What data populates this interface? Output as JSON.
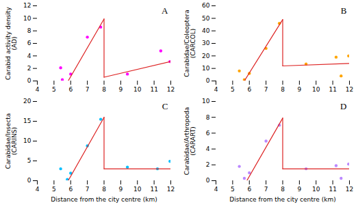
{
  "chart_data": [
    {
      "type": "scatter",
      "annotations": [
        "A"
      ],
      "ylabel": "Carabid activity density\n(AD)",
      "xlim": [
        4,
        12
      ],
      "xticks": [
        4,
        5,
        6,
        7,
        8,
        9,
        10,
        11,
        12
      ],
      "ylim": [
        0,
        12
      ],
      "yticks": [
        0,
        2,
        4,
        6,
        8,
        10,
        12
      ],
      "series": [
        {
          "type": "scatter",
          "color": "#FF00FF",
          "x": [
            5.4,
            5.5,
            6.0,
            7.0,
            7.8,
            9.4,
            11.4,
            11.95
          ],
          "values": [
            2.1,
            0.2,
            1.1,
            7.0,
            8.6,
            1.1,
            4.8,
            3.1
          ]
        },
        {
          "type": "line",
          "color": "#DD2222",
          "x": [
            5.85,
            8.0
          ],
          "values": [
            0.0,
            9.9
          ]
        },
        {
          "type": "line",
          "color": "#DD2222",
          "x": [
            8.0,
            12.0
          ],
          "values": [
            0.6,
            3.1
          ]
        },
        {
          "type": "line",
          "color": "#DD2222",
          "x": [
            8.0,
            8.0
          ],
          "values": [
            9.9,
            0.6
          ]
        }
      ]
    },
    {
      "type": "scatter",
      "annotations": [
        "B"
      ],
      "ylabel": "Carabidae/Coleoptera\n(CARCOL)",
      "xlim": [
        4,
        12
      ],
      "xticks": [
        4,
        5,
        6,
        7,
        8,
        9,
        10,
        11,
        12
      ],
      "ylim": [
        0,
        60
      ],
      "yticks": [
        0,
        10,
        20,
        30,
        40,
        50,
        60
      ],
      "series": [
        {
          "type": "scatter",
          "color": "#FFA500",
          "x": [
            5.4,
            5.7,
            6.0,
            7.0,
            7.8,
            9.4,
            11.2,
            11.5,
            11.95
          ],
          "values": [
            8.0,
            1.0,
            6.0,
            26.0,
            46.0,
            13.5,
            19.0,
            4.0,
            20.0
          ]
        },
        {
          "type": "line",
          "color": "#DD2222",
          "x": [
            5.7,
            8.0
          ],
          "values": [
            0.0,
            49.0
          ]
        },
        {
          "type": "line",
          "color": "#DD2222",
          "x": [
            8.0,
            12.0
          ],
          "values": [
            12.0,
            14.0
          ]
        },
        {
          "type": "line",
          "color": "#DD2222",
          "x": [
            8.0,
            8.0
          ],
          "values": [
            49.0,
            12.0
          ]
        }
      ]
    },
    {
      "type": "scatter",
      "annotations": [
        "C"
      ],
      "ylabel": "Carabidae/Insecta\n(CARINS)",
      "xlabel": "Distance from the city centre (km)",
      "xlim": [
        4,
        12
      ],
      "xticks": [
        4,
        5,
        6,
        7,
        8,
        9,
        10,
        11,
        12
      ],
      "ylim": [
        0,
        20
      ],
      "yticks": [
        0,
        5,
        10,
        15,
        20
      ],
      "series": [
        {
          "type": "scatter",
          "color": "#00BFFF",
          "x": [
            5.4,
            5.8,
            6.0,
            7.0,
            7.8,
            9.4,
            11.2,
            11.95
          ],
          "values": [
            3.0,
            0.3,
            1.9,
            8.8,
            15.5,
            3.4,
            3.0,
            4.9
          ]
        },
        {
          "type": "line",
          "color": "#DD2222",
          "x": [
            5.85,
            8.0
          ],
          "values": [
            0.0,
            16.0
          ]
        },
        {
          "type": "line",
          "color": "#DD2222",
          "x": [
            8.0,
            12.0
          ],
          "values": [
            3.0,
            3.0
          ]
        },
        {
          "type": "line",
          "color": "#DD2222",
          "x": [
            8.0,
            8.0
          ],
          "values": [
            16.0,
            3.0
          ]
        }
      ]
    },
    {
      "type": "scatter",
      "annotations": [
        "D"
      ],
      "ylabel": "Carabidae/Arthropoda\n(CARART)",
      "xlabel": "Distance from the city centre (km)",
      "xlim": [
        4,
        12
      ],
      "xticks": [
        4,
        5,
        6,
        7,
        8,
        9,
        10,
        11,
        12
      ],
      "ylim": [
        0,
        10
      ],
      "yticks": [
        0,
        2,
        4,
        6,
        8,
        10
      ],
      "series": [
        {
          "type": "scatter",
          "color": "#BB88FF",
          "x": [
            5.4,
            5.7,
            6.0,
            7.0,
            7.8,
            9.4,
            11.2,
            11.5,
            11.95
          ],
          "values": [
            1.8,
            0.3,
            1.0,
            5.0,
            7.0,
            1.5,
            1.9,
            0.3,
            2.1
          ]
        },
        {
          "type": "line",
          "color": "#DD2222",
          "x": [
            5.85,
            8.0
          ],
          "values": [
            0.0,
            7.9
          ]
        },
        {
          "type": "line",
          "color": "#DD2222",
          "x": [
            8.0,
            12.0
          ],
          "values": [
            1.5,
            1.5
          ]
        },
        {
          "type": "line",
          "color": "#DD2222",
          "x": [
            8.0,
            8.0
          ],
          "values": [
            7.9,
            1.5
          ]
        }
      ]
    }
  ]
}
